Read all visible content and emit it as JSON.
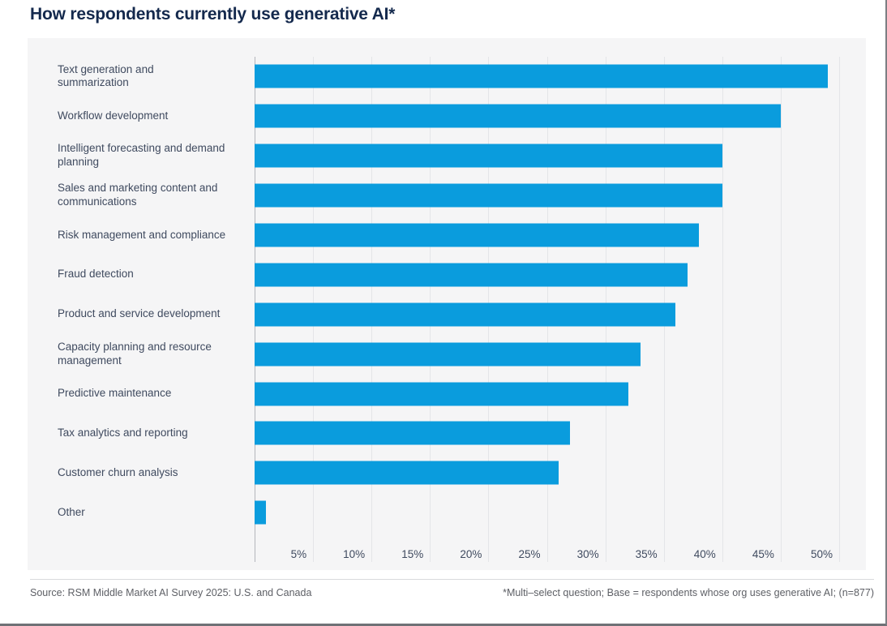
{
  "title": "How respondents currently use generative AI*",
  "footer": {
    "source": "Source: RSM Middle Market AI Survey 2025: U.S. and Canada",
    "note": "*Multi–select question; Base = respondents whose org uses generative AI; (n=877)"
  },
  "colors": {
    "bar": "#0a9cdd",
    "title": "#14294d",
    "panel_background": "#f5f5f6"
  },
  "chart_data": {
    "type": "bar",
    "orientation": "horizontal",
    "title": "How respondents currently use generative AI*",
    "categories": [
      "Text generation and summarization",
      "Workflow development",
      "Intelligent forecasting and demand planning",
      "Sales and marketing content and communications",
      "Risk management and compliance",
      "Fraud detection",
      "Product and service development",
      "Capacity planning and resource management",
      "Predictive maintenance",
      "Tax analytics and reporting",
      "Customer churn analysis",
      "Other"
    ],
    "values": [
      49,
      45,
      40,
      40,
      38,
      37,
      36,
      33,
      32,
      27,
      26,
      1
    ],
    "unit": "%",
    "xlabel": "",
    "ylabel": "",
    "xlim": [
      0,
      50
    ],
    "tick_step": 5,
    "tick_labels": [
      "5%",
      "10%",
      "15%",
      "20%",
      "25%",
      "30%",
      "35%",
      "40%",
      "45%",
      "50%"
    ],
    "grid": true,
    "legend": false
  }
}
